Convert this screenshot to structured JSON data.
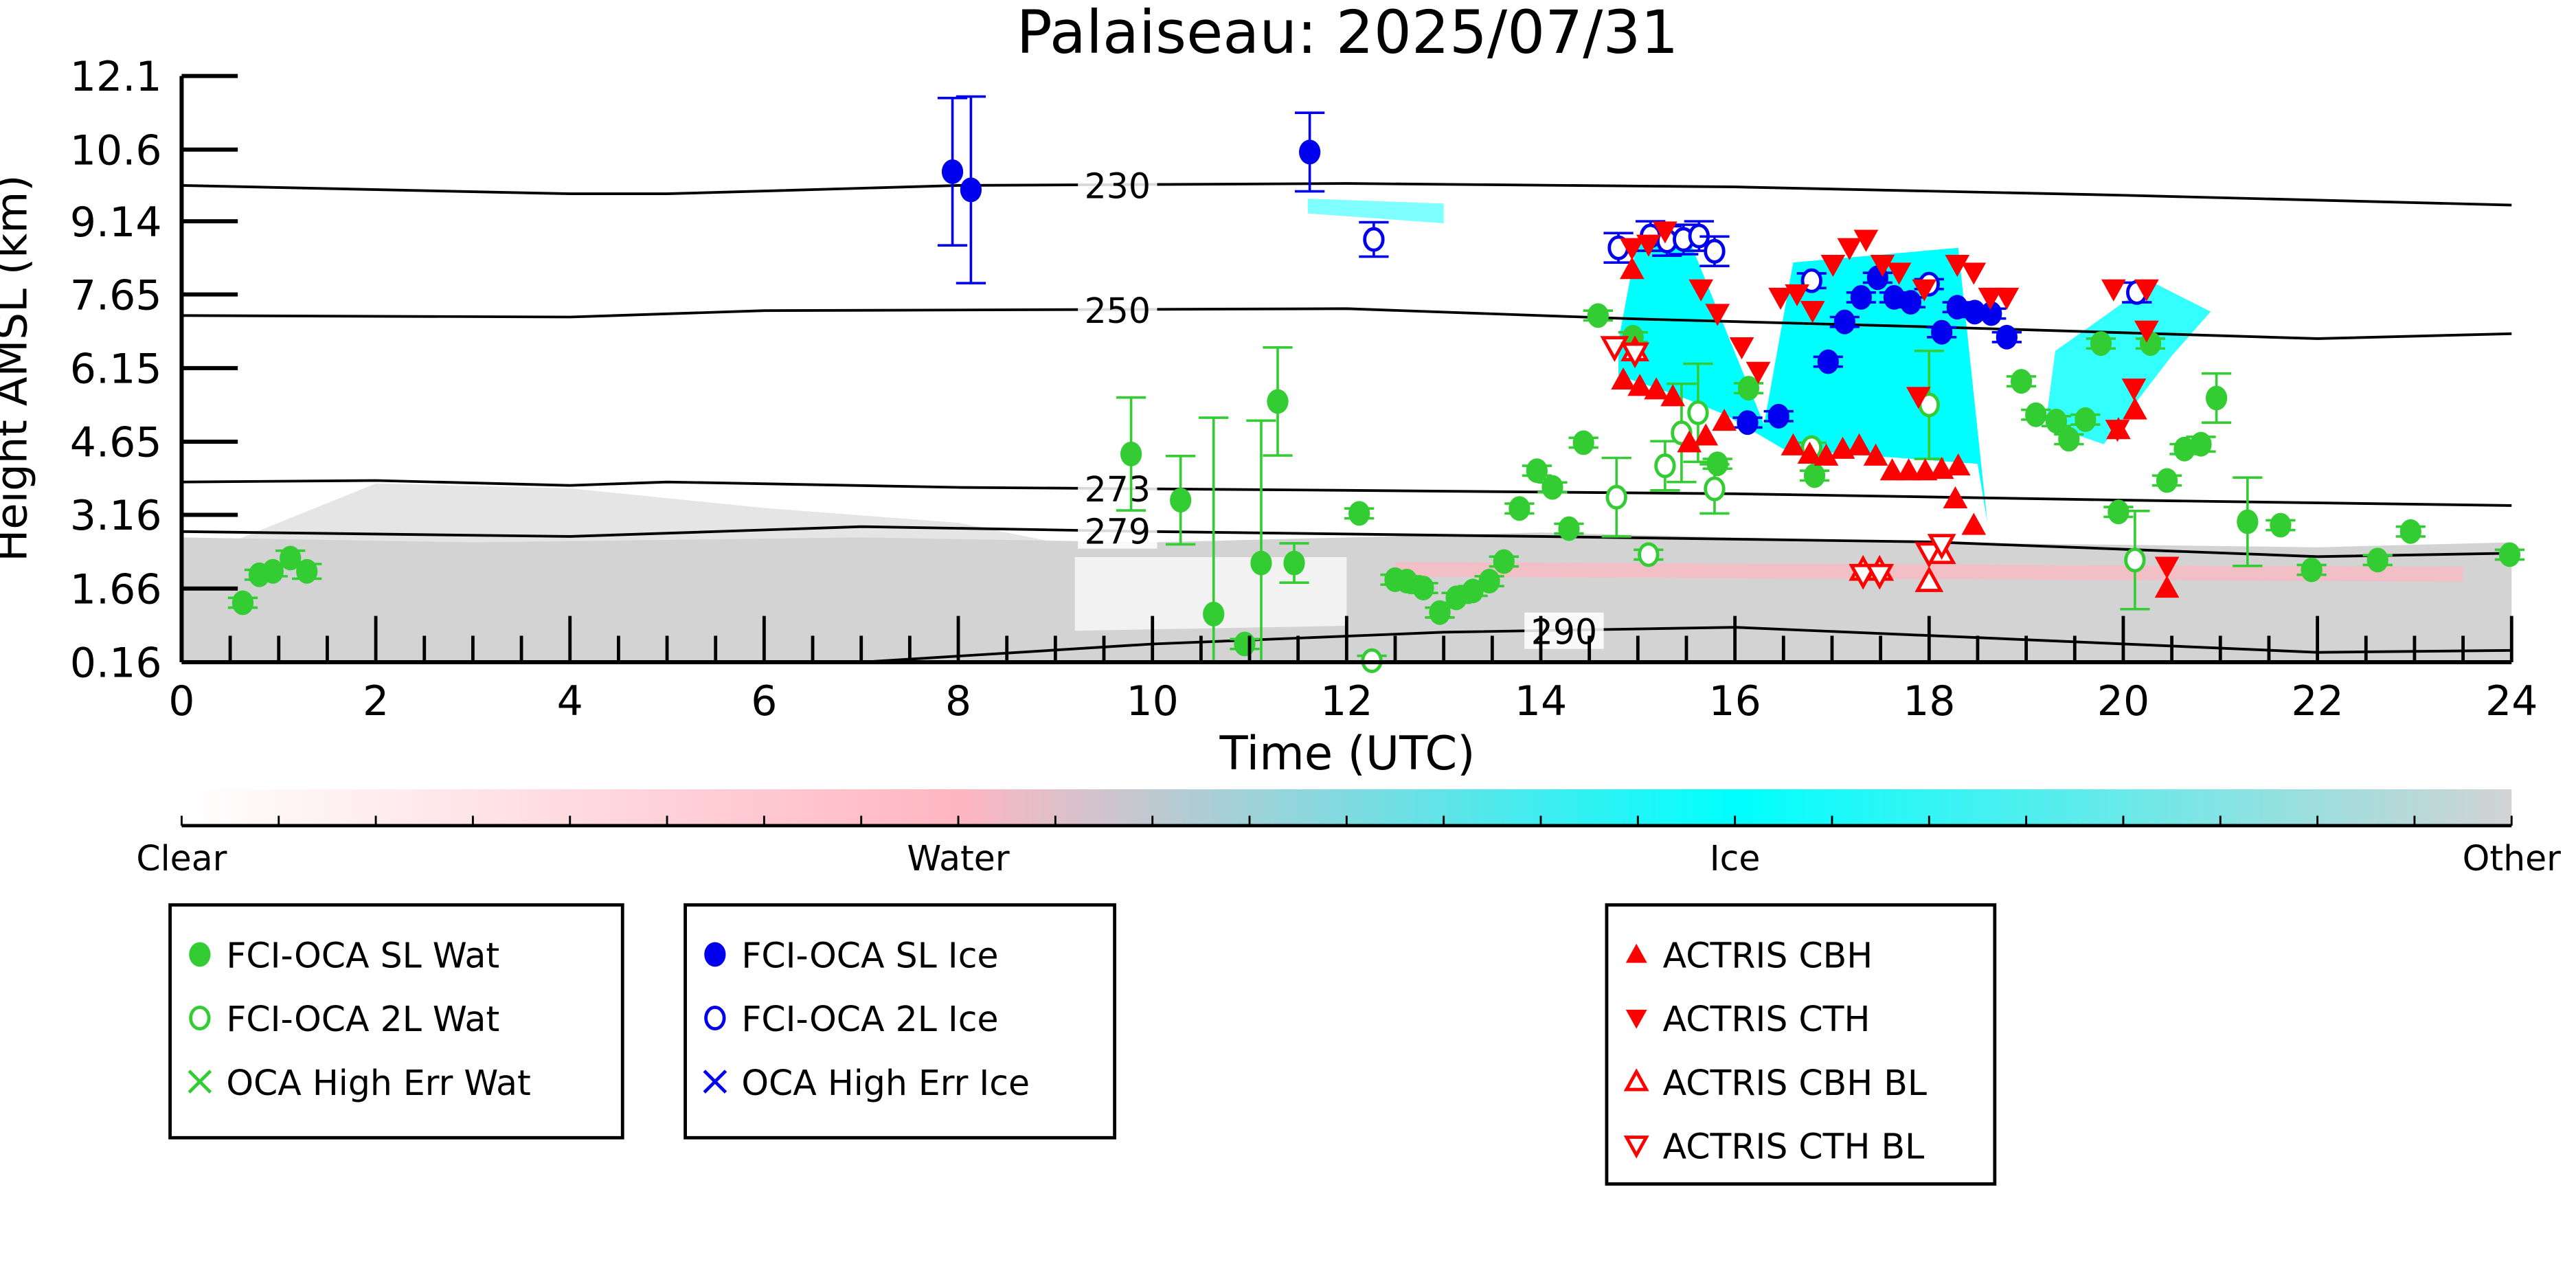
{
  "chart_data": {
    "type": "scatter",
    "title": "Palaiseau: 2025/07/31",
    "xlabel": "Time (UTC)",
    "ylabel": "Height AMSL (km)",
    "xlim": [
      0,
      24
    ],
    "ylim": [
      0.16,
      12.1
    ],
    "xticks": [
      0,
      2,
      4,
      6,
      8,
      10,
      12,
      14,
      16,
      18,
      20,
      22,
      24
    ],
    "yticks": [
      0.16,
      1.66,
      3.16,
      4.65,
      6.15,
      7.65,
      9.14,
      10.6,
      12.1
    ],
    "ytick_labels": [
      "0.16",
      "1.66",
      "3.16",
      "4.65",
      "6.15",
      "7.65",
      "9.14",
      "10.6",
      "12.1"
    ],
    "colors": {
      "water_green": "#33cc33",
      "ice_blue": "#0000ee",
      "actris_red": "#ff0000",
      "ice_cyan": "#00ffff",
      "water_pink": "#ffb6c1",
      "other_gray": "#d3d3d3"
    },
    "contours": [
      {
        "label": "230",
        "label_x": 9.3,
        "points": [
          [
            0,
            9.87
          ],
          [
            4,
            9.7
          ],
          [
            5,
            9.7
          ],
          [
            8,
            9.87
          ],
          [
            12,
            9.91
          ],
          [
            16,
            9.84
          ],
          [
            20,
            9.67
          ],
          [
            24,
            9.47
          ]
        ]
      },
      {
        "label": "250",
        "label_x": 9.3,
        "points": [
          [
            0,
            7.22
          ],
          [
            4,
            7.19
          ],
          [
            6,
            7.32
          ],
          [
            12,
            7.36
          ],
          [
            15,
            7.15
          ],
          [
            18,
            6.99
          ],
          [
            22,
            6.75
          ],
          [
            24,
            6.85
          ]
        ]
      },
      {
        "label": "273",
        "label_x": 9.3,
        "points": [
          [
            0,
            3.83
          ],
          [
            2,
            3.86
          ],
          [
            4,
            3.76
          ],
          [
            5,
            3.83
          ],
          [
            8,
            3.72
          ],
          [
            12,
            3.66
          ],
          [
            16,
            3.59
          ],
          [
            20,
            3.46
          ],
          [
            24,
            3.35
          ]
        ]
      },
      {
        "label": "279",
        "label_x": 9.3,
        "points": [
          [
            0,
            2.82
          ],
          [
            4,
            2.72
          ],
          [
            7,
            2.92
          ],
          [
            10,
            2.82
          ],
          [
            14,
            2.72
          ],
          [
            18,
            2.61
          ],
          [
            22,
            2.31
          ],
          [
            24,
            2.38
          ]
        ]
      },
      {
        "label": "290",
        "label_x": 13.9,
        "points": [
          [
            7,
            0.16
          ],
          [
            10,
            0.53
          ],
          [
            13,
            0.77
          ],
          [
            16,
            0.87
          ],
          [
            18.5,
            0.66
          ],
          [
            22,
            0.36
          ],
          [
            24,
            0.4
          ]
        ]
      }
    ],
    "series": [
      {
        "name": "FCI-OCA SL Wat",
        "marker": "filled-circle",
        "color": "#33cc33",
        "points": [
          [
            0.63,
            1.37,
            0.1
          ],
          [
            0.8,
            1.94,
            0.1
          ],
          [
            0.94,
            2.01,
            0.1
          ],
          [
            1.12,
            2.28,
            0.15
          ],
          [
            1.29,
            2.01,
            0.15
          ],
          [
            9.78,
            4.4,
            1.15
          ],
          [
            10.29,
            3.46,
            0.9
          ],
          [
            10.63,
            1.14,
            4.0
          ],
          [
            10.95,
            0.53,
            0.1
          ],
          [
            11.12,
            2.18,
            2.9
          ],
          [
            11.29,
            5.47,
            1.1
          ],
          [
            11.46,
            2.18,
            0.4
          ],
          [
            12.13,
            3.19,
            0.1
          ],
          [
            12.5,
            1.84,
            0.1
          ],
          [
            12.62,
            1.81,
            0.1
          ],
          [
            12.79,
            1.67,
            0.1
          ],
          [
            12.96,
            1.17,
            0.1
          ],
          [
            13.13,
            1.47,
            0.1
          ],
          [
            13.3,
            1.61,
            0.1
          ],
          [
            13.47,
            1.81,
            0.1
          ],
          [
            13.62,
            2.21,
            0.1
          ],
          [
            13.78,
            3.29,
            0.1
          ],
          [
            13.96,
            4.06,
            0.1
          ],
          [
            14.12,
            3.72,
            0.1
          ],
          [
            14.29,
            2.88,
            0.1
          ],
          [
            14.44,
            4.63,
            0.1
          ],
          [
            14.59,
            7.22,
            0.1
          ],
          [
            14.95,
            6.78,
            0.1
          ],
          [
            15.82,
            4.2,
            0.1
          ],
          [
            16.14,
            5.74,
            0.1
          ],
          [
            16.82,
            3.96,
            0.1
          ],
          [
            18.95,
            5.88,
            0.1
          ],
          [
            19.1,
            5.2,
            0.1
          ],
          [
            19.31,
            5.07,
            0.1
          ],
          [
            19.44,
            4.7,
            0.1
          ],
          [
            19.61,
            5.1,
            0.1
          ],
          [
            19.77,
            6.65,
            0.1
          ],
          [
            19.95,
            3.22,
            0.1
          ],
          [
            20.28,
            6.65,
            0.1
          ],
          [
            20.45,
            3.86,
            0.1
          ],
          [
            20.63,
            4.5,
            0.1
          ],
          [
            20.8,
            4.6,
            0.15
          ],
          [
            20.96,
            5.54,
            0.5
          ],
          [
            21.28,
            3.02,
            0.9
          ],
          [
            21.62,
            2.95,
            0.1
          ],
          [
            21.94,
            2.04,
            0.1
          ],
          [
            22.62,
            2.24,
            0.1
          ],
          [
            22.96,
            2.82,
            0.1
          ],
          [
            23.98,
            2.35,
            0.1
          ]
        ]
      },
      {
        "name": "FCI-OCA 2L Wat",
        "marker": "open-circle",
        "color": "#33cc33",
        "points": [
          [
            12.26,
            0.19,
            0.1
          ],
          [
            14.78,
            3.52,
            0.8
          ],
          [
            15.11,
            2.35,
            0.1
          ],
          [
            15.28,
            4.16,
            0.5
          ],
          [
            15.45,
            4.83,
            1.0
          ],
          [
            15.62,
            5.24,
            1.0
          ],
          [
            15.79,
            3.69,
            0.5
          ],
          [
            16.79,
            4.53,
            0.1
          ],
          [
            18.0,
            5.4,
            1.1
          ],
          [
            20.12,
            2.24,
            1.0
          ]
        ]
      },
      {
        "name": "OCA High Err Wat",
        "marker": "x",
        "color": "#33cc33",
        "points": []
      },
      {
        "name": "FCI-OCA SL Ice",
        "marker": "filled-circle",
        "color": "#0000ee",
        "points": [
          [
            7.94,
            10.15,
            1.5
          ],
          [
            8.13,
            9.78,
            1.9
          ],
          [
            11.62,
            10.55,
            0.8
          ],
          [
            16.13,
            5.04,
            0.1
          ],
          [
            16.45,
            5.17,
            0.1
          ],
          [
            16.96,
            6.28,
            0.1
          ],
          [
            17.13,
            7.09,
            0.1
          ],
          [
            17.3,
            7.59,
            0.1
          ],
          [
            17.47,
            7.99,
            0.1
          ],
          [
            17.64,
            7.59,
            0.1
          ],
          [
            17.81,
            7.49,
            0.1
          ],
          [
            18.13,
            6.88,
            0.1
          ],
          [
            18.29,
            7.39,
            0.1
          ],
          [
            18.47,
            7.29,
            0.1
          ],
          [
            18.64,
            7.26,
            0.1
          ],
          [
            18.8,
            6.78,
            0.1
          ]
        ]
      },
      {
        "name": "FCI-OCA 2L Ice",
        "marker": "open-circle",
        "color": "#0000ee",
        "points": [
          [
            12.28,
            8.77,
            0.35
          ],
          [
            14.8,
            8.6,
            0.3
          ],
          [
            15.13,
            8.84,
            0.3
          ],
          [
            15.3,
            8.74,
            0.3
          ],
          [
            15.47,
            8.77,
            0.3
          ],
          [
            15.63,
            8.84,
            0.3
          ],
          [
            15.79,
            8.53,
            0.3
          ],
          [
            16.79,
            7.93,
            0.15
          ],
          [
            18.0,
            7.86,
            0.1
          ],
          [
            20.14,
            7.69,
            0.2
          ]
        ]
      },
      {
        "name": "OCA High Err Ice",
        "marker": "x",
        "color": "#0000ee",
        "points": []
      },
      {
        "name": "ACTRIS CBH",
        "marker": "triangle-up",
        "color": "#ff0000",
        "points": [
          [
            14.85,
            5.91
          ],
          [
            15.02,
            5.78
          ],
          [
            15.19,
            5.71
          ],
          [
            15.36,
            5.57
          ],
          [
            15.53,
            4.63
          ],
          [
            15.7,
            4.77
          ],
          [
            15.89,
            5.07
          ],
          [
            16.6,
            4.57
          ],
          [
            16.77,
            4.4
          ],
          [
            16.94,
            4.36
          ],
          [
            17.11,
            4.5
          ],
          [
            17.28,
            4.57
          ],
          [
            17.45,
            4.36
          ],
          [
            17.62,
            4.06
          ],
          [
            17.79,
            4.06
          ],
          [
            17.96,
            4.06
          ],
          [
            18.13,
            4.09
          ],
          [
            18.3,
            4.16
          ],
          [
            18.46,
            2.95
          ],
          [
            18.27,
            3.49
          ],
          [
            20.45,
            1.67
          ],
          [
            20.12,
            5.3
          ],
          [
            19.95,
            4.9
          ],
          [
            14.94,
            8.16
          ]
        ]
      },
      {
        "name": "ACTRIS CTH",
        "marker": "triangle-down",
        "color": "#ff0000",
        "points": [
          [
            14.94,
            8.6
          ],
          [
            15.11,
            8.67
          ],
          [
            15.28,
            8.94
          ],
          [
            15.65,
            7.76
          ],
          [
            15.82,
            7.26
          ],
          [
            16.07,
            6.58
          ],
          [
            16.24,
            6.08
          ],
          [
            16.47,
            7.59
          ],
          [
            16.64,
            7.66
          ],
          [
            16.8,
            7.32
          ],
          [
            17.01,
            8.26
          ],
          [
            17.18,
            8.6
          ],
          [
            17.35,
            8.77
          ],
          [
            17.52,
            8.26
          ],
          [
            17.69,
            8.1
          ],
          [
            17.95,
            7.76
          ],
          [
            18.29,
            8.26
          ],
          [
            18.46,
            8.1
          ],
          [
            18.63,
            7.59
          ],
          [
            18.8,
            7.59
          ],
          [
            19.9,
            7.76
          ],
          [
            20.24,
            7.76
          ],
          [
            20.11,
            5.74
          ],
          [
            19.94,
            4.9
          ],
          [
            20.24,
            6.92
          ],
          [
            20.45,
            2.11
          ],
          [
            17.89,
            5.57
          ],
          [
            14.76,
            6.58
          ]
        ]
      },
      {
        "name": "ACTRIS CBH BL",
        "marker": "open-triangle-up",
        "color": "#ff0000",
        "points": [
          [
            14.97,
            6.51
          ],
          [
            17.32,
            2.04
          ],
          [
            17.49,
            2.04
          ],
          [
            18.0,
            1.81
          ],
          [
            18.13,
            2.38
          ]
        ]
      },
      {
        "name": "ACTRIS CTH BL",
        "marker": "open-triangle-down",
        "color": "#ff0000",
        "points": [
          [
            14.76,
            6.58
          ],
          [
            14.97,
            6.45
          ],
          [
            17.32,
            1.94
          ],
          [
            17.49,
            1.94
          ],
          [
            18.0,
            2.38
          ],
          [
            18.13,
            2.55
          ]
        ]
      }
    ],
    "colorbar": {
      "labels": [
        "Clear",
        "Water",
        "Ice",
        "Other"
      ],
      "colors": [
        "#ffffff",
        "#ffb6c1",
        "#00ffff",
        "#d3d3d3"
      ]
    },
    "legend_placement": "bottom",
    "legend_groups": [
      [
        "FCI-OCA SL Wat",
        "FCI-OCA 2L Wat",
        "OCA High Err Wat"
      ],
      [
        "FCI-OCA SL Ice",
        "FCI-OCA 2L Ice",
        "OCA High Err Ice"
      ],
      [
        "ACTRIS CBH",
        "ACTRIS CTH",
        "ACTRIS CBH BL",
        "ACTRIS CTH BL"
      ]
    ]
  }
}
